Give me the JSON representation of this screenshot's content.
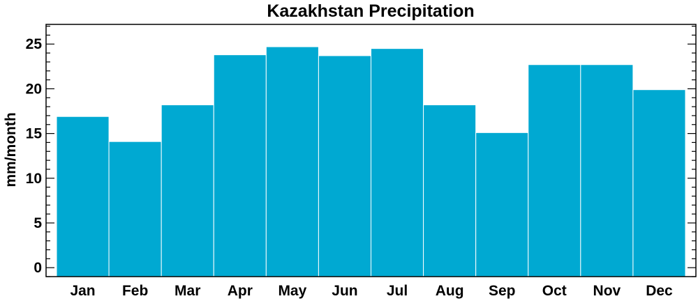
{
  "chart_data": {
    "type": "bar",
    "title": "Kazakhstan Precipitation",
    "xlabel": "",
    "ylabel": "mm/month",
    "categories": [
      "Jan",
      "Feb",
      "Mar",
      "Apr",
      "May",
      "Jun",
      "Jul",
      "Aug",
      "Sep",
      "Oct",
      "Nov",
      "Dec"
    ],
    "values": [
      16.9,
      14.1,
      18.2,
      23.8,
      24.7,
      23.7,
      24.5,
      18.2,
      15.1,
      22.7,
      22.7,
      19.9
    ],
    "ylim": [
      -1,
      27.2
    ],
    "yticks": [
      0,
      5,
      10,
      15,
      20,
      25
    ],
    "yticks_labels": [
      "0",
      "5",
      "10",
      "15",
      "20",
      "25"
    ],
    "y_minor_step": 1,
    "grid": false,
    "legend": "none",
    "bar_color": "#00A9D2",
    "bar_edge_color": "#ffffff",
    "axis_color": "#000000"
  }
}
